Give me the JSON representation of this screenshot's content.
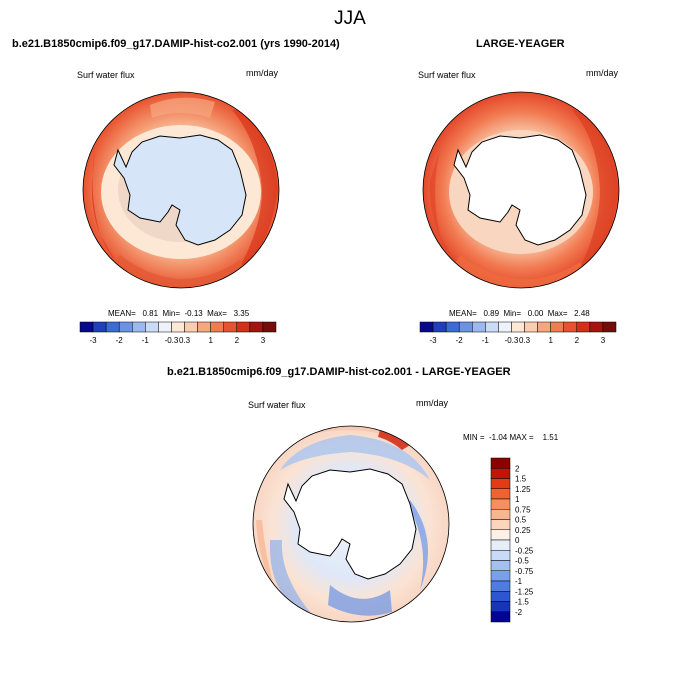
{
  "page": {
    "title": "JJA"
  },
  "panels": [
    {
      "id": "left",
      "header": "b.e21.B1850cmip6.f09_g17.DAMIP-hist-co2.001 (yrs 1990-2014)",
      "variable": "Surf water flux",
      "units": "mm/day",
      "stats_text": "MEAN=   0.81  Min=  -0.13  Max=   3.35"
    },
    {
      "id": "right",
      "header": "LARGE-YEAGER",
      "variable": "Surf water flux",
      "units": "mm/day",
      "stats_text": "MEAN=   0.89  Min=   0.00  Max=   2.48"
    },
    {
      "id": "diff",
      "header": "b.e21.B1850cmip6.f09_g17.DAMIP-hist-co2.001 - LARGE-YEAGER",
      "variable": "Surf water flux",
      "units": "mm/day",
      "stats_text": "MIN =  -1.04 MAX =    1.51"
    }
  ],
  "colorbar_horizontal": {
    "colors": [
      "#08088f",
      "#1f3fbf",
      "#3d6ad9",
      "#6a93e6",
      "#9cb9ef",
      "#c9dbf7",
      "#eef3fb",
      "#fde7d5",
      "#fbcdaf",
      "#f7a680",
      "#f27b52",
      "#e8522e",
      "#d2301a",
      "#a51410",
      "#780c0a"
    ],
    "labels": [
      "-3",
      "-2",
      "-1",
      "-0.3",
      "0.3",
      "1",
      "2",
      "3"
    ]
  },
  "colorbar_vertical": {
    "colors": [
      "#8c0000",
      "#c21507",
      "#e33a17",
      "#ef6234",
      "#f48f60",
      "#f8b690",
      "#fbd6bc",
      "#fdf0e6",
      "#e6eef9",
      "#c8daf6",
      "#a4c0f1",
      "#7aa0ea",
      "#4f7ce0",
      "#2d57d0",
      "#1636b8",
      "#03048f"
    ],
    "labels": [
      "2",
      "1.5",
      "1.25",
      "1",
      "0.75",
      "0.5",
      "0.25",
      "0",
      "-0.25",
      "-0.5",
      "-0.75",
      "-1",
      "-1.25",
      "-1.5",
      "-2"
    ]
  }
}
